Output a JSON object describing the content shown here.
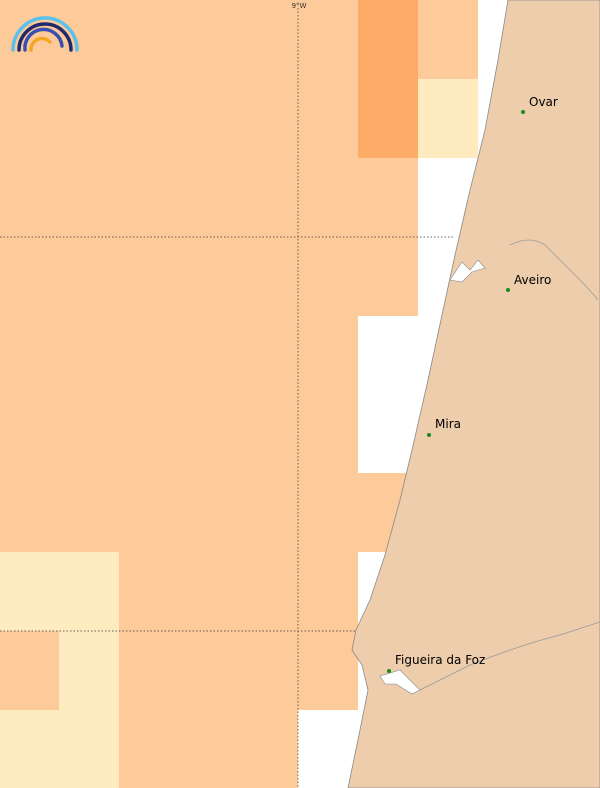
{
  "graticule": {
    "meridian_label": "9°W"
  },
  "places": [
    {
      "label": "Ovar"
    },
    {
      "label": "Aveiro"
    },
    {
      "label": "Mira"
    },
    {
      "label": "Figueira da Foz"
    }
  ]
}
